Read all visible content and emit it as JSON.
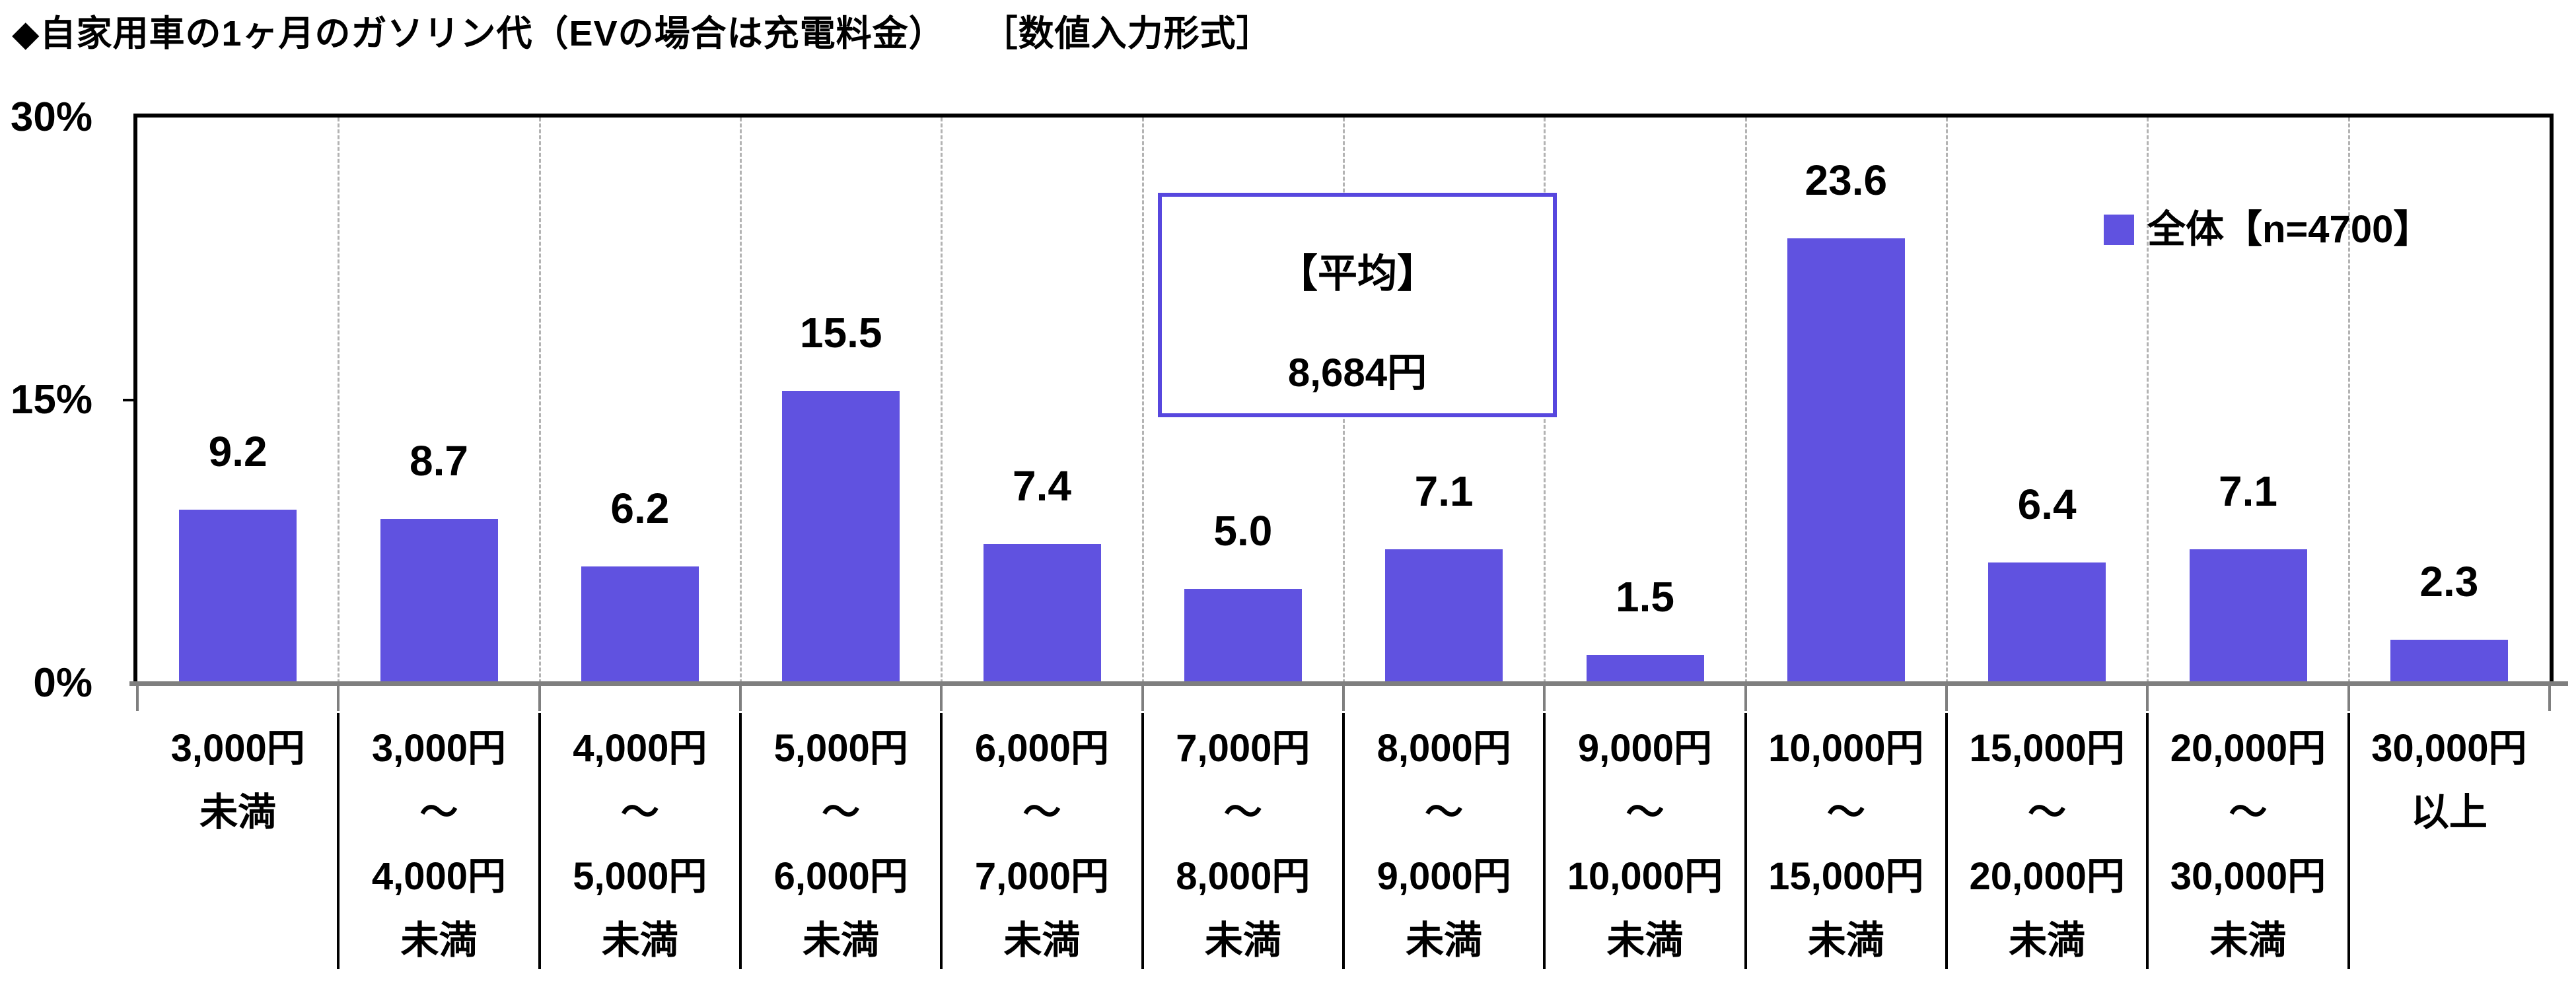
{
  "title": "◆自家用車の1ヶ月のガソリン代（EVの場合は充電料金）　　［数値入力形式］",
  "legend": {
    "label": "全体【n=4700】",
    "swatch_color": "#6052E0"
  },
  "annotation_box": {
    "line1": "【平均】",
    "line2": "8,684円",
    "border_color": "#5747DE"
  },
  "y_axis": {
    "ticks": [
      "30%",
      "15%",
      "0%"
    ]
  },
  "colors": {
    "bar": "#6052E0",
    "axis_line": "#7f7f7f",
    "gridline": "#b3b3b3",
    "plot_border": "#000000",
    "text": "#000000"
  },
  "chart_data": {
    "type": "bar",
    "title": "◆自家用車の1ヶ月のガソリン代（EVの場合は充電料金）　［数値入力形式］",
    "series_name": "全体【n=4700】",
    "n": 4700,
    "average_label": "【平均】8,684円",
    "categories": [
      "3,000円未満",
      "3,000円～4,000円未満",
      "4,000円～5,000円未満",
      "5,000円～6,000円未満",
      "6,000円～7,000円未満",
      "7,000円～8,000円未満",
      "8,000円～9,000円未満",
      "9,000円～10,000円未満",
      "10,000円～15,000円未満",
      "15,000円～20,000円未満",
      "20,000円～30,000円未満",
      "30,000円以上"
    ],
    "categories_lines": [
      [
        "3,000円",
        "未満"
      ],
      [
        "3,000円",
        "～",
        "4,000円",
        "未満"
      ],
      [
        "4,000円",
        "～",
        "5,000円",
        "未満"
      ],
      [
        "5,000円",
        "～",
        "6,000円",
        "未満"
      ],
      [
        "6,000円",
        "～",
        "7,000円",
        "未満"
      ],
      [
        "7,000円",
        "～",
        "8,000円",
        "未満"
      ],
      [
        "8,000円",
        "～",
        "9,000円",
        "未満"
      ],
      [
        "9,000円",
        "～",
        "10,000円",
        "未満"
      ],
      [
        "10,000円",
        "～",
        "15,000円",
        "未満"
      ],
      [
        "15,000円",
        "～",
        "20,000円",
        "未満"
      ],
      [
        "20,000円",
        "～",
        "30,000円",
        "未満"
      ],
      [
        "30,000円",
        "以上"
      ]
    ],
    "values": [
      9.2,
      8.7,
      6.2,
      15.5,
      7.4,
      5.0,
      7.1,
      1.5,
      23.6,
      6.4,
      7.1,
      2.3
    ],
    "value_labels": [
      "9.2",
      "8.7",
      "6.2",
      "15.5",
      "7.4",
      "5.0",
      "7.1",
      "1.5",
      "23.6",
      "6.4",
      "7.1",
      "2.3"
    ],
    "xlabel": "",
    "ylabel": "",
    "ylim": [
      0,
      30
    ],
    "yticks_pct": [
      0,
      15,
      30
    ],
    "grid": "vertical-dashed-between-categories",
    "legend_position": "top-right-inside"
  }
}
